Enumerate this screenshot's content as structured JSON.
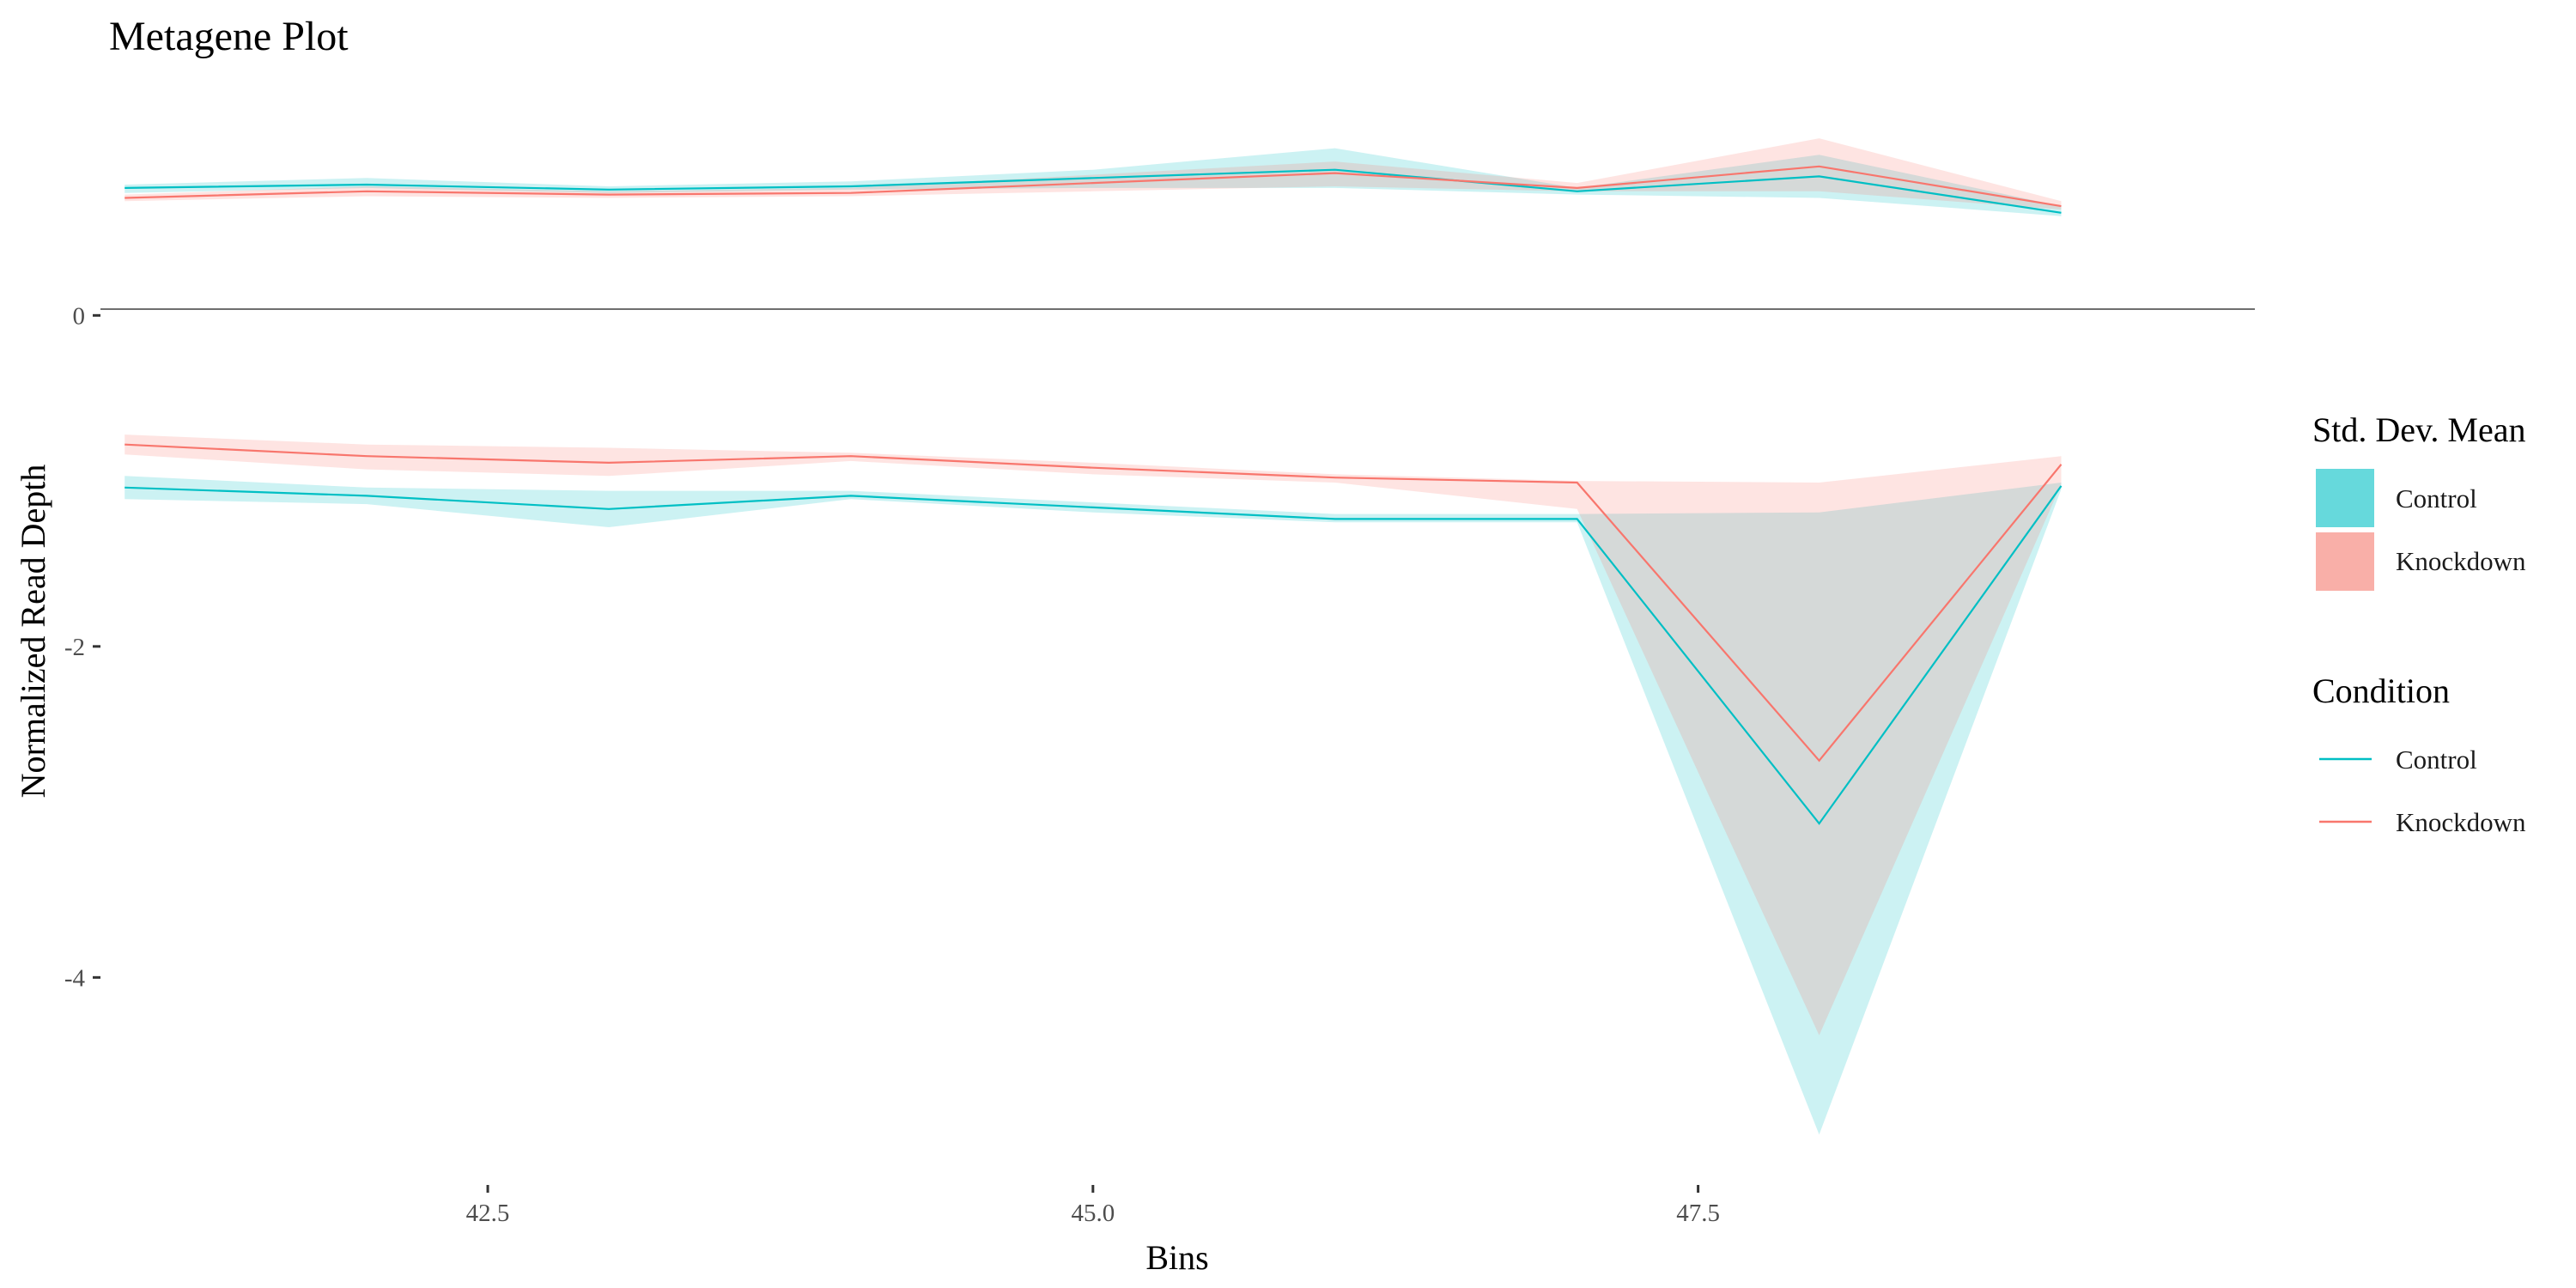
{
  "chart_data": {
    "type": "line",
    "title": "Metagene Plot",
    "xlabel": "Bins",
    "ylabel": "Normalized Read Depth",
    "xlim": [
      40.9,
      49.8
    ],
    "ylim": [
      -5.15,
      1.75
    ],
    "x_ticks": [
      42.5,
      45.0,
      47.5
    ],
    "x_tick_labels": [
      "42.5",
      "45.0",
      "47.5"
    ],
    "y_ticks": [
      0,
      -2,
      -4
    ],
    "y_tick_labels": [
      "0",
      "-2",
      "-4"
    ],
    "zero_line": 0,
    "grid": false,
    "legend_position": "right",
    "x": [
      41,
      42,
      43,
      44,
      45,
      46,
      47,
      48,
      49
    ],
    "series": [
      {
        "name": "Control",
        "color": "#00BFC4",
        "upper_mean": [
          0.77,
          0.79,
          0.76,
          0.78,
          0.83,
          0.88,
          0.75,
          0.84,
          0.62
        ],
        "upper_sd_low": [
          0.74,
          0.77,
          0.74,
          0.76,
          0.77,
          0.77,
          0.73,
          0.71,
          0.6
        ],
        "upper_sd_high": [
          0.79,
          0.83,
          0.78,
          0.81,
          0.88,
          1.01,
          0.77,
          0.97,
          0.66
        ],
        "lower_mean": [
          -1.04,
          -1.09,
          -1.17,
          -1.09,
          -1.16,
          -1.23,
          -1.23,
          -3.07,
          -1.03
        ],
        "lower_sd_low": [
          -1.11,
          -1.14,
          -1.28,
          -1.11,
          -1.19,
          -1.25,
          -1.25,
          -4.95,
          -1.05
        ],
        "lower_sd_high": [
          -0.97,
          -1.04,
          -1.06,
          -1.06,
          -1.13,
          -1.2,
          -1.2,
          -1.19,
          -1.01
        ]
      },
      {
        "name": "Knockdown",
        "color": "#F8766D",
        "upper_mean": [
          0.71,
          0.75,
          0.73,
          0.74,
          0.8,
          0.86,
          0.77,
          0.9,
          0.66
        ],
        "upper_sd_low": [
          0.69,
          0.72,
          0.71,
          0.72,
          0.75,
          0.78,
          0.75,
          0.75,
          0.64
        ],
        "upper_sd_high": [
          0.73,
          0.78,
          0.75,
          0.77,
          0.85,
          0.93,
          0.8,
          1.07,
          0.69
        ],
        "lower_mean": [
          -0.78,
          -0.85,
          -0.89,
          -0.85,
          -0.92,
          -0.98,
          -1.01,
          -2.69,
          -0.9
        ],
        "lower_sd_low": [
          -0.84,
          -0.93,
          -0.97,
          -0.88,
          -0.96,
          -1.01,
          -1.17,
          -4.35,
          -1.02
        ],
        "lower_sd_high": [
          -0.72,
          -0.78,
          -0.8,
          -0.83,
          -0.89,
          -0.96,
          -1.0,
          -1.01,
          -0.85
        ]
      }
    ],
    "legend_fill": {
      "title": "Std. Dev. Mean",
      "entries": [
        {
          "label": "Control",
          "color": "#66D9DC"
        },
        {
          "label": "Knockdown",
          "color": "#F9AFA8"
        }
      ]
    },
    "legend_line": {
      "title": "Condition",
      "entries": [
        {
          "label": "Control",
          "color": "#00BFC4"
        },
        {
          "label": "Knockdown",
          "color": "#F8766D"
        }
      ]
    }
  }
}
